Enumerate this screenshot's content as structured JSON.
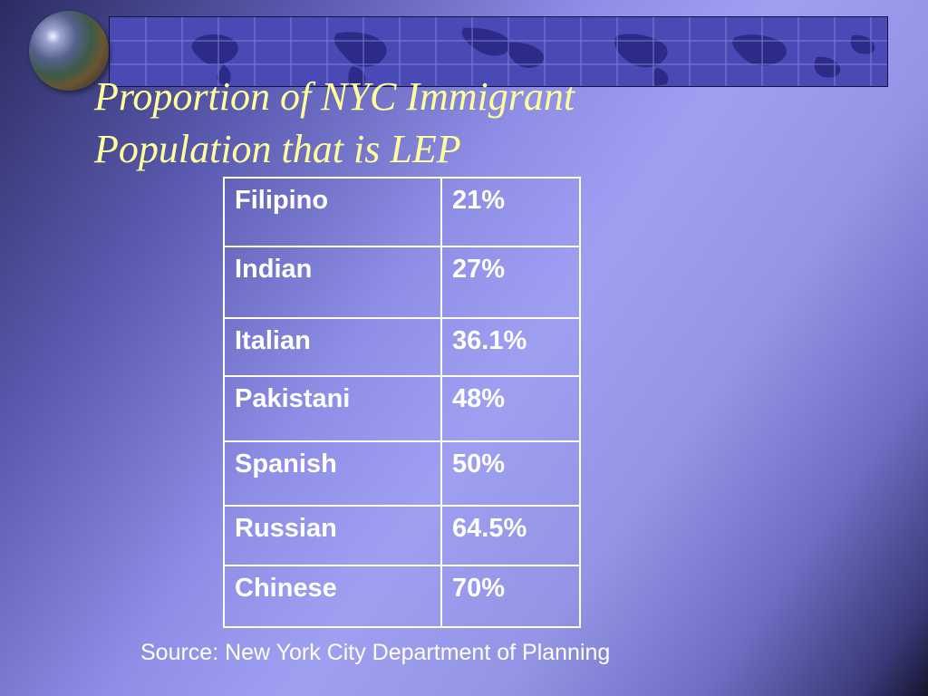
{
  "slide": {
    "title_lines": [
      "Proportion of NYC Immigrant",
      "Population that is LEP"
    ],
    "table": {
      "rows": [
        {
          "language": "Filipino",
          "percent": "21%"
        },
        {
          "language": "Indian",
          "percent": "27%"
        },
        {
          "language": "Italian",
          "percent": "36.1%"
        },
        {
          "language": "Pakistani",
          "percent": "48%"
        },
        {
          "language": "Spanish",
          "percent": "50%"
        },
        {
          "language": "Russian",
          "percent": "64.5%"
        },
        {
          "language": "Chinese",
          "percent": "70%"
        }
      ]
    },
    "source": "Source: New York City Department of Planning",
    "colors": {
      "title": "#ffff99",
      "table_text": "#ffffff",
      "banner": "#4a4ab6",
      "banner_land": "#2c2c88"
    }
  }
}
